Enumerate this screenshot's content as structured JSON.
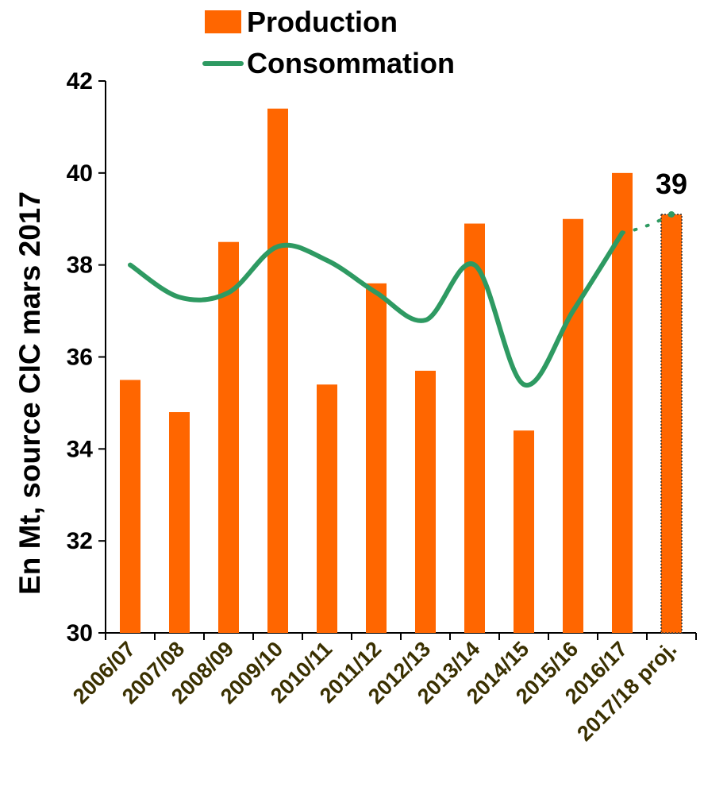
{
  "chart_data": {
    "type": "bar",
    "title": "",
    "ylabel": "En Mt, source CIC mars 2017",
    "xlabel": "",
    "ylim": [
      30,
      42
    ],
    "yticks": [
      30,
      32,
      34,
      36,
      38,
      40,
      42
    ],
    "categories": [
      "2006/07",
      "2007/08",
      "2008/09",
      "2009/10",
      "2010/11",
      "2011/12",
      "2012/13",
      "2013/14",
      "2014/15",
      "2015/16",
      "2016/17",
      "2017/18 proj."
    ],
    "series": [
      {
        "name": "Production",
        "kind": "bar",
        "color": "#ff6600",
        "values": [
          35.5,
          34.8,
          38.5,
          41.4,
          35.4,
          37.6,
          35.7,
          38.9,
          34.4,
          39.0,
          40.0,
          39.1
        ]
      },
      {
        "name": "Consommation",
        "kind": "line",
        "color": "#2e9a62",
        "values": [
          38.0,
          37.3,
          37.4,
          38.4,
          38.1,
          37.4,
          36.8,
          38.0,
          35.4,
          37.0,
          38.7,
          39.1
        ]
      }
    ],
    "data_labels": [
      {
        "category": "2017/18 proj.",
        "text": "39"
      }
    ],
    "legend": {
      "position": "top",
      "entries": [
        "Production",
        "Consommation"
      ]
    },
    "grid": false
  }
}
